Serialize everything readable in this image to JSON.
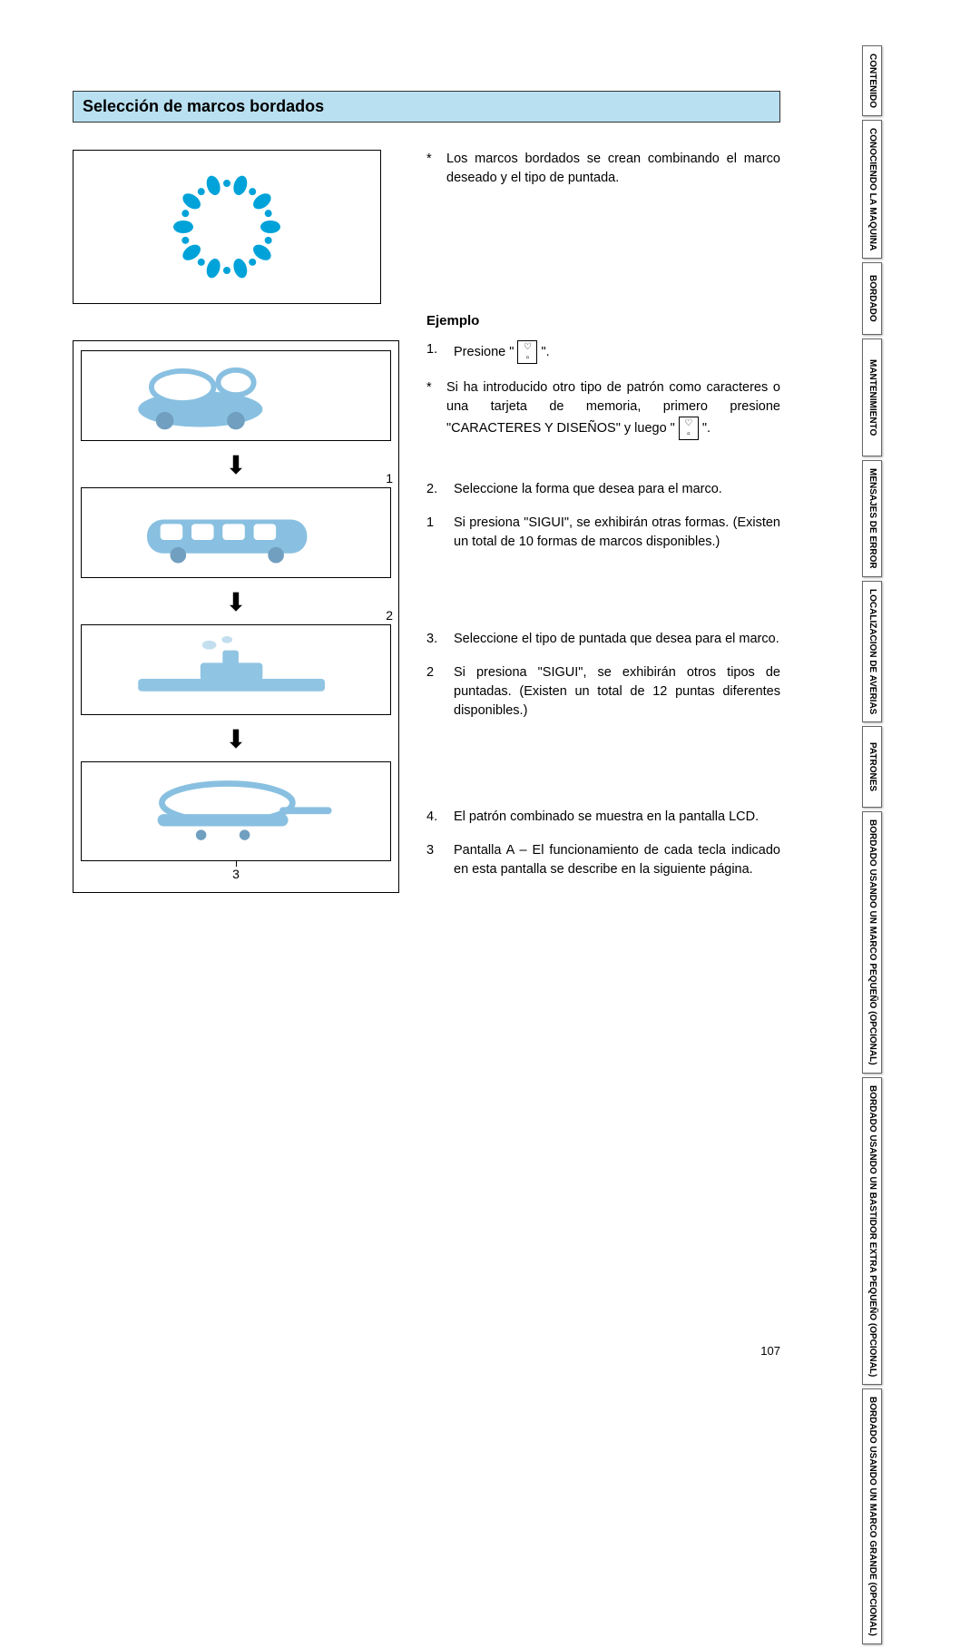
{
  "title": "Selección de marcos bordados",
  "intro": "Los marcos bordados se crean combinando el marco deseado y el tipo de puntada.",
  "example_heading": "Ejemplo",
  "step1_pre": "Presione \" ",
  "step1_post": " \".",
  "step1_note_pre": "Si ha introducido otro tipo de patrón como caracteres o una tarjeta de memoria, primero presione \"CARACTERES Y DISEÑOS\" y luego \" ",
  "step1_note_post": " \".",
  "step2": "Seleccione la forma que desea para el marco.",
  "step2_note": "Si presiona \"SIGUI\", se exhibirán otras formas. (Existen un total de 10 formas de marcos disponibles.)",
  "step3": "Seleccione el tipo de puntada que desea para el marco.",
  "step3_note": "Si presiona \"SIGUI\", se exhibirán otros tipos de puntadas. (Existen un total de 12 puntas diferentes disponibles.)",
  "step4": "El patrón combinado se muestra en la pantalla LCD.",
  "step4_note": "Pantalla A – El funcionamiento de cada tecla indicado en esta pantalla se describe en la siguiente página.",
  "callouts": {
    "c1": "1",
    "c2": "2",
    "c3": "3"
  },
  "steps_labels": {
    "s1": "1.",
    "s2": "2.",
    "s3": "3.",
    "s4": "4."
  },
  "note_labels": {
    "n1": "1",
    "n2": "2",
    "n3": "3"
  },
  "star": "*",
  "page_number": "107",
  "tabs": [
    "CONTENIDO",
    "CONOCIENDO LA MAQUINA",
    "BORDADO",
    "MANTENIMIENTO",
    "MENSAJES DE ERROR",
    "LOCALIZACION DE AVERIAS",
    "PATRONES",
    "BORDADO USANDO UN MARCO PEQUEÑO (OPCIONAL)",
    "BORDADO USANDO UN BASTIDOR EXTRA PEQUEÑO (OPCIONAL)",
    "BORDADO USANDO UN MARCO GRANDE (OPCIONAL)"
  ],
  "colors": {
    "title_bg": "#b8e0f0",
    "accent": "#00a3d9",
    "sketch": "#5da9d6"
  },
  "tab_heights": [
    70,
    130,
    80,
    130,
    100,
    110,
    90,
    150,
    160,
    150
  ]
}
